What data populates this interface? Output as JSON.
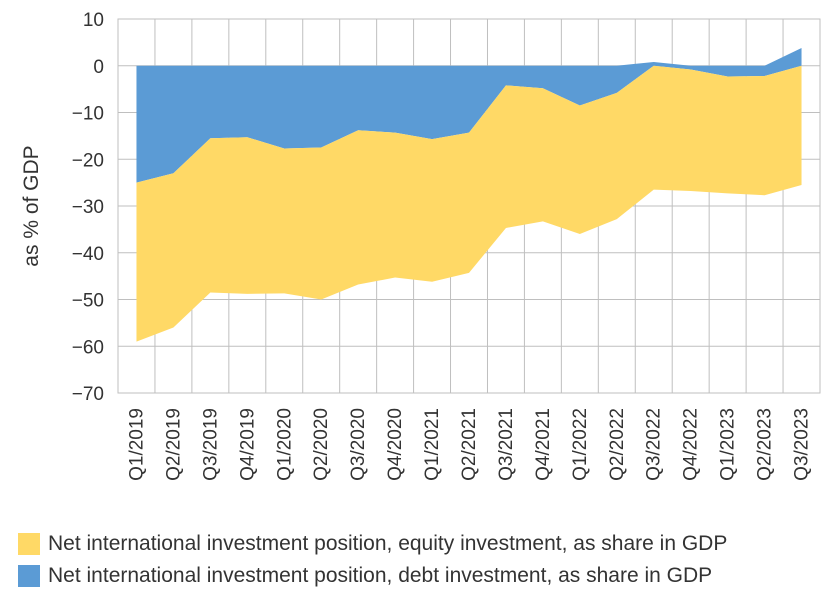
{
  "chart_data": {
    "type": "area",
    "ylabel": "as % of GDP",
    "xlabel": "",
    "ylim": [
      -70,
      10
    ],
    "yticks": [
      10,
      0,
      -10,
      -20,
      -30,
      -40,
      -50,
      -60,
      -70
    ],
    "ytick_labels": [
      "10",
      "0",
      "−10",
      "−20",
      "−30",
      "−40",
      "−50",
      "−60",
      "−70"
    ],
    "grid": true,
    "legend_position": "bottom",
    "categories": [
      "Q1/2019",
      "Q2/2019",
      "Q3/2019",
      "Q4/2019",
      "Q1/2020",
      "Q2/2020",
      "Q3/2020",
      "Q4/2020",
      "Q1/2021",
      "Q2/2021",
      "Q3/2021",
      "Q4/2021",
      "Q1/2022",
      "Q2/2022",
      "Q3/2022",
      "Q4/2022",
      "Q1/2023",
      "Q2/2023",
      "Q3/2023"
    ],
    "series": [
      {
        "name": "Net international investment position, equity investment, as share in GDP",
        "color": "#FFD966",
        "values": [
          -34,
          -33,
          -33,
          -33.5,
          -31,
          -32.5,
          -33,
          -31,
          -30.5,
          -30,
          -30.5,
          -28.5,
          -27.5,
          -27,
          -26.5,
          -26,
          -25,
          -25.5,
          -25.5
        ]
      },
      {
        "name": "Net international investment position, debt investment, as share in GDP",
        "color": "#5B9BD5",
        "values": [
          -25,
          -23,
          -15.5,
          -15.3,
          -17.7,
          -17.5,
          -13.8,
          -14.3,
          -15.7,
          -14.3,
          -4.2,
          -4.8,
          -8.5,
          -5.8,
          0.8,
          -0.8,
          -2.3,
          -2.2,
          3.8
        ]
      }
    ]
  }
}
